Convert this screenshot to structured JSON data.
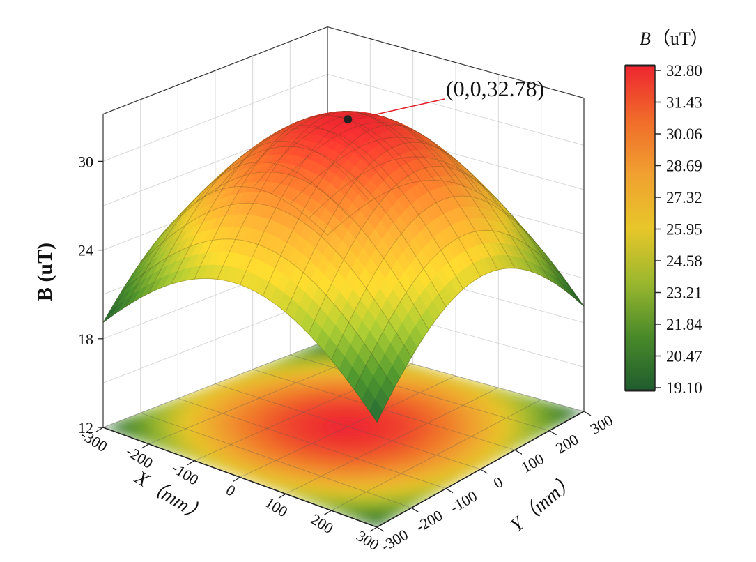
{
  "chart_data": {
    "type": "surface3d",
    "title": "",
    "xlabel": "X（mm）",
    "ylabel": "Y（mm）",
    "zlabel": "B (uT)",
    "x_range": [
      -300,
      300
    ],
    "y_range": [
      -300,
      300
    ],
    "z_range": [
      12,
      33
    ],
    "x_ticks": [
      -300,
      -200,
      -100,
      0,
      100,
      200,
      300
    ],
    "y_ticks": [
      -300,
      -200,
      -100,
      0,
      100,
      200,
      300
    ],
    "z_ticks": [
      12,
      18,
      24,
      30
    ],
    "peak": {
      "x": 0,
      "y": 0,
      "z": 32.78,
      "label": "(0,0,32.78)"
    },
    "corner_value_estimate": 19.1,
    "mid_edge_value_estimate": 25.4,
    "projection_on_floor": true,
    "grid": true,
    "colorbar": {
      "title": "B（uT）",
      "min": 19.1,
      "max": 32.8,
      "ticks": [
        "32.80",
        "31.43",
        "30.06",
        "28.69",
        "27.32",
        "25.95",
        "24.58",
        "23.21",
        "21.84",
        "20.47",
        "19.10"
      ],
      "colors": [
        "#1f5c2e",
        "#4a8a2a",
        "#9bb82e",
        "#e8c62a",
        "#f0a030",
        "#f06b2a",
        "#ee2630"
      ],
      "placement": "right"
    }
  }
}
